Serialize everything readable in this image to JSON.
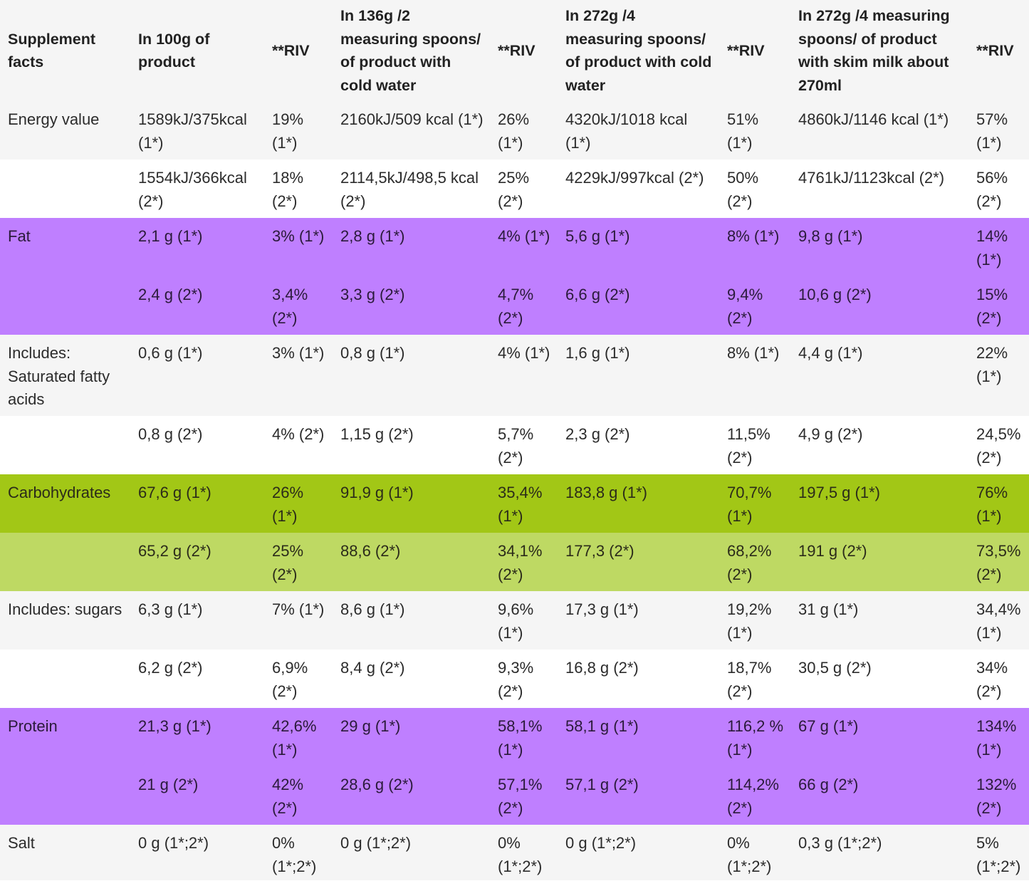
{
  "headers": [
    "Supplement facts",
    "In 100g of product",
    "**RIV",
    "In 136g /2 measuring spoons/ of product with cold water",
    "**RIV",
    "In 272g /4 measuring spoons/ of product with cold water",
    "**RIV",
    "In 272g /4 measuring spoons/ of product with skim milk about 270ml",
    "**RIV"
  ],
  "rows": [
    {
      "style": "light",
      "cells": [
        "Energy value",
        "1589kJ/375kcal (1*)",
        "19% (1*)",
        "2160kJ/509 kcal (1*)",
        "26% (1*)",
        "4320kJ/1018 kcal (1*)",
        "51% (1*)",
        "4860kJ/1146 kcal (1*)",
        "57% (1*)"
      ]
    },
    {
      "style": "white",
      "cells": [
        "",
        "1554kJ/366kcal (2*)",
        "18% (2*)",
        "2114,5kJ/498,5 kcal (2*)",
        "25% (2*)",
        "4229kJ/997kcal (2*)",
        "50% (2*)",
        "4761kJ/1123kcal (2*)",
        "56% (2*)"
      ]
    },
    {
      "style": "purple",
      "cells": [
        "Fat",
        "2,1 g (1*)",
        "3% (1*)",
        "2,8 g (1*)",
        "4% (1*)",
        "5,6 g (1*)",
        "8% (1*)",
        "9,8 g (1*)",
        "14% (1*)"
      ]
    },
    {
      "style": "purple2",
      "cells": [
        "",
        "2,4 g (2*)",
        "3,4% (2*)",
        "3,3 g (2*)",
        "4,7% (2*)",
        "6,6 g (2*)",
        "9,4% (2*)",
        "10,6 g (2*)",
        "15% (2*)"
      ]
    },
    {
      "style": "light",
      "tall": true,
      "cells": [
        "Includes: Saturated fatty acids",
        "0,6 g (1*)",
        "3% (1*)",
        "0,8 g (1*)",
        "4% (1*)",
        "1,6 g (1*)",
        "8% (1*)",
        "4,4  g (1*)",
        "22% (1*)"
      ]
    },
    {
      "style": "white",
      "cells": [
        "",
        "0,8 g (2*)",
        "4% (2*)",
        "1,15 g (2*)",
        "5,7% (2*)",
        "2,3 g (2*)",
        "11,5% (2*)",
        "4,9 g (2*)",
        "24,5% (2*)"
      ]
    },
    {
      "style": "green",
      "cells": [
        "Carbohydrates",
        "67,6 g (1*)",
        "26% (1*)",
        "91,9  g (1*)",
        "35,4% (1*)",
        "183,8  g (1*)",
        "70,7% (1*)",
        "197,5  g (1*)",
        "76% (1*)"
      ]
    },
    {
      "style": "lgreen",
      "cells": [
        "",
        "65,2 g (2*)",
        "25% (2*)",
        "88,6 (2*)",
        "34,1% (2*)",
        "177,3 (2*)",
        "68,2% (2*)",
        "191 g (2*)",
        "73,5% (2*)"
      ]
    },
    {
      "style": "light",
      "cells": [
        "Includes: sugars",
        "6,3 g (1*)",
        "7% (1*)",
        "8,6 g (1*)",
        "9,6% (1*)",
        "17,3 g (1*)",
        "19,2% (1*)",
        "31  g (1*)",
        "34,4% (1*)"
      ]
    },
    {
      "style": "white",
      "cells": [
        "",
        "6,2 g (2*)",
        "6,9% (2*)",
        "8,4 g (2*)",
        "9,3% (2*)",
        "16,8 g (2*)",
        "18,7% (2*)",
        "30,5 g (2*)",
        "34% (2*)"
      ]
    },
    {
      "style": "purple",
      "cells": [
        "Protein",
        "21,3 g (1*)",
        "42,6% (1*)",
        "29 g (1*)",
        "58,1% (1*)",
        "58,1 g (1*)",
        "116,2 % (1*)",
        "67 g (1*)",
        "134% (1*)"
      ]
    },
    {
      "style": "purple2",
      "cells": [
        "",
        "21 g (2*)",
        "42% (2*)",
        "28,6 g (2*)",
        "57,1% (2*)",
        "57,1 g (2*)",
        "114,2% (2*)",
        "66 g (2*)",
        "132% (2*)"
      ]
    },
    {
      "style": "light",
      "last": true,
      "cells": [
        "Salt",
        "0 g (1*;2*)",
        "0% (1*;2*)",
        "0 g (1*;2*)",
        "0% (1*;2*)",
        "0 g (1*;2*)",
        "0% (1*;2*)",
        "0,3 g (1*;2*)",
        "5% (1*;2*)"
      ]
    }
  ],
  "colors": {
    "light": "#f5f5f5",
    "white": "#ffffff",
    "purple": "#bf7fff",
    "green": "#a2c716",
    "lgreen": "#bed963"
  }
}
